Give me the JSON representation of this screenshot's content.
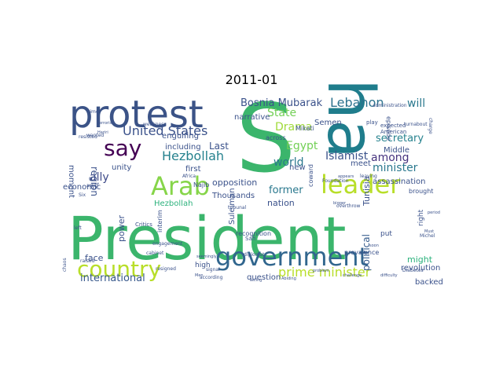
{
  "figure": {
    "title": "2011-01"
  },
  "words": [
    {
      "text": "President",
      "color": "#3bb56c"
    },
    {
      "text": "S",
      "color": "#3bb56c"
    },
    {
      "text": "ha",
      "color": "#1f7d8c"
    },
    {
      "text": "protest",
      "color": "#3b5387"
    },
    {
      "text": "government",
      "color": "#31668e"
    },
    {
      "text": "Arab",
      "color": "#86d549"
    },
    {
      "text": "leader",
      "color": "#b8de29"
    },
    {
      "text": "country",
      "color": "#b8de29"
    },
    {
      "text": "say",
      "color": "#440154"
    },
    {
      "text": "United States",
      "color": "#3b528b"
    },
    {
      "text": "Hezbollah",
      "color": "#26828e"
    },
    {
      "text": "prime minister",
      "color": "#b8de29"
    },
    {
      "text": "international",
      "color": "#38598c"
    },
    {
      "text": "Lebanon",
      "color": "#2c728e"
    },
    {
      "text": "Islamist",
      "color": "#3b528b"
    },
    {
      "text": "secretary",
      "color": "#26828e"
    },
    {
      "text": "minister",
      "color": "#2a788e"
    },
    {
      "text": "State",
      "color": "#73d056"
    },
    {
      "text": "Drama",
      "color": "#a0da39"
    },
    {
      "text": "Egypt",
      "color": "#73d056"
    },
    {
      "text": "world",
      "color": "#2a788e"
    },
    {
      "text": "Bosnia Mubarak",
      "color": "#3b528b"
    },
    {
      "text": "among",
      "color": "#46337e"
    },
    {
      "text": "will",
      "color": "#2a788e"
    },
    {
      "text": "ally",
      "color": "#3e4a89"
    },
    {
      "text": "region",
      "color": "#3b528b"
    },
    {
      "text": "former",
      "color": "#2a788e"
    },
    {
      "text": "political",
      "color": "#365c8d"
    },
    {
      "text": "Tunisia",
      "color": "#3b528b"
    },
    {
      "text": "Hezbollah",
      "color": "#2db27d"
    },
    {
      "text": "Last",
      "color": "#3b528b"
    },
    {
      "text": "including",
      "color": "#3b528b"
    },
    {
      "text": "engulfing",
      "color": "#3b528b"
    },
    {
      "text": "opposition",
      "color": "#3b528b"
    },
    {
      "text": "nation",
      "color": "#3b528b"
    },
    {
      "text": "Thousands",
      "color": "#3b528b"
    },
    {
      "text": "Suleiman",
      "color": "#3b528b"
    },
    {
      "text": "assassination",
      "color": "#3b528b"
    },
    {
      "text": "revolution",
      "color": "#3b528b"
    },
    {
      "text": "backed",
      "color": "#3b528b"
    },
    {
      "text": "might",
      "color": "#2db27d"
    },
    {
      "text": "question",
      "color": "#3b528b"
    },
    {
      "text": "power",
      "color": "#3b528b"
    },
    {
      "text": "face",
      "color": "#3b528b"
    },
    {
      "text": "narrative",
      "color": "#3b528b"
    },
    {
      "text": "Middle",
      "color": "#3b528b"
    },
    {
      "text": "meet",
      "color": "#3b528b"
    },
    {
      "text": "new",
      "color": "#3b528b"
    },
    {
      "text": "unity",
      "color": "#3b528b"
    },
    {
      "text": "first",
      "color": "#3b528b"
    },
    {
      "text": "economic",
      "color": "#3b528b"
    },
    {
      "text": "high",
      "color": "#3b528b"
    },
    {
      "text": "moment",
      "color": "#3b528b"
    },
    {
      "text": "put",
      "color": "#3b528b"
    },
    {
      "text": "right",
      "color": "#3b528b"
    },
    {
      "text": "brought",
      "color": "#3b528b"
    },
    {
      "text": "Semen",
      "color": "#3b528b"
    },
    {
      "text": "coward",
      "color": "#3b528b"
    },
    {
      "text": "episode",
      "color": "#3b528b"
    },
    {
      "text": "interim",
      "color": "#3b528b"
    },
    {
      "text": "across",
      "color": "#3b528b"
    },
    {
      "text": "Mikati",
      "color": "#3b528b"
    },
    {
      "text": "Najib",
      "color": "#3b528b"
    },
    {
      "text": "Safi",
      "color": "#3b528b"
    },
    {
      "text": "engagement",
      "color": "#3b528b"
    },
    {
      "text": "diplomat",
      "color": "#3b528b"
    },
    {
      "text": "tribunal",
      "color": "#3b528b"
    },
    {
      "text": "overthrow",
      "color": "#3b528b"
    },
    {
      "text": "prevalence",
      "color": "#3b528b"
    },
    {
      "text": "Critics",
      "color": "#3b528b"
    },
    {
      "text": "cabinet",
      "color": "#3b528b"
    },
    {
      "text": "resigned",
      "color": "#3b528b"
    },
    {
      "text": "raised",
      "color": "#3b528b"
    },
    {
      "text": "amid",
      "color": "#3b528b"
    },
    {
      "text": "left",
      "color": "#3b528b"
    },
    {
      "text": "time",
      "color": "#3b528b"
    },
    {
      "text": "Hariri",
      "color": "#3b528b"
    },
    {
      "text": "wanted",
      "color": "#3b528b"
    },
    {
      "text": "Six",
      "color": "#3b528b"
    },
    {
      "text": "Africa",
      "color": "#3b528b"
    },
    {
      "text": "Foundation",
      "color": "#3b528b"
    },
    {
      "text": "according",
      "color": "#3b528b"
    },
    {
      "text": "signal",
      "color": "#3b528b"
    },
    {
      "text": "Abiding",
      "color": "#3b528b"
    },
    {
      "text": "problem",
      "color": "#3b528b"
    },
    {
      "text": "expected",
      "color": "#3b528b"
    },
    {
      "text": "American",
      "color": "#3b528b"
    },
    {
      "text": "play",
      "color": "#3b528b"
    },
    {
      "text": "bigger",
      "color": "#3b528b"
    },
    {
      "text": "appears",
      "color": "#3b528b"
    },
    {
      "text": "turnabout",
      "color": "#3b528b"
    },
    {
      "text": "Diabetes",
      "color": "#3b528b"
    },
    {
      "text": "Michel",
      "color": "#3b528b"
    },
    {
      "text": "Must",
      "color": "#3b528b"
    },
    {
      "text": "period",
      "color": "#3b528b"
    },
    {
      "text": "resisted",
      "color": "#3b528b"
    },
    {
      "text": "terrorist",
      "color": "#3b528b"
    },
    {
      "text": "weakness",
      "color": "#3b528b"
    },
    {
      "text": "administration",
      "color": "#3b528b"
    },
    {
      "text": "charge",
      "color": "#3b528b"
    },
    {
      "text": "leaving",
      "color": "#3b528b"
    },
    {
      "text": "chaos",
      "color": "#3b528b"
    },
    {
      "text": "seemingly",
      "color": "#3b528b"
    },
    {
      "text": "soon",
      "color": "#3b528b"
    },
    {
      "text": "Men",
      "color": "#3b528b"
    },
    {
      "text": "facing",
      "color": "#3b528b"
    },
    {
      "text": "challenge",
      "color": "#3b528b"
    },
    {
      "text": "difficulty",
      "color": "#3b528b"
    },
    {
      "text": "recognition",
      "color": "#3b528b"
    }
  ]
}
